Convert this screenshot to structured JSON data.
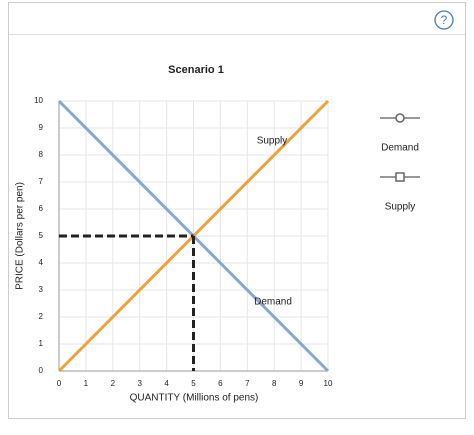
{
  "toolbar": {
    "help": "?"
  },
  "chart_data": {
    "type": "line",
    "title": "Scenario 1",
    "x_label": "QUANTITY (Millions of pens)",
    "y_label": "PRICE (Dollars per pen)",
    "xlim": [
      0,
      10
    ],
    "ylim": [
      0,
      10
    ],
    "xticks": [
      0,
      1,
      2,
      3,
      4,
      5,
      6,
      7,
      8,
      9,
      10
    ],
    "yticks": [
      0,
      1,
      2,
      3,
      4,
      5,
      6,
      7,
      8,
      9,
      10
    ],
    "grid": true,
    "series": [
      {
        "name": "Demand",
        "color": "#88a9cf",
        "marker": "circle",
        "x": [
          0,
          10
        ],
        "values": [
          10,
          0
        ]
      },
      {
        "name": "Supply",
        "color": "#f0a13a",
        "marker": "square",
        "x": [
          0,
          10
        ],
        "values": [
          0,
          10
        ]
      }
    ],
    "annotations": [
      "Supply",
      "Demand"
    ],
    "equilibrium": {
      "x": 5,
      "y": 5
    }
  }
}
